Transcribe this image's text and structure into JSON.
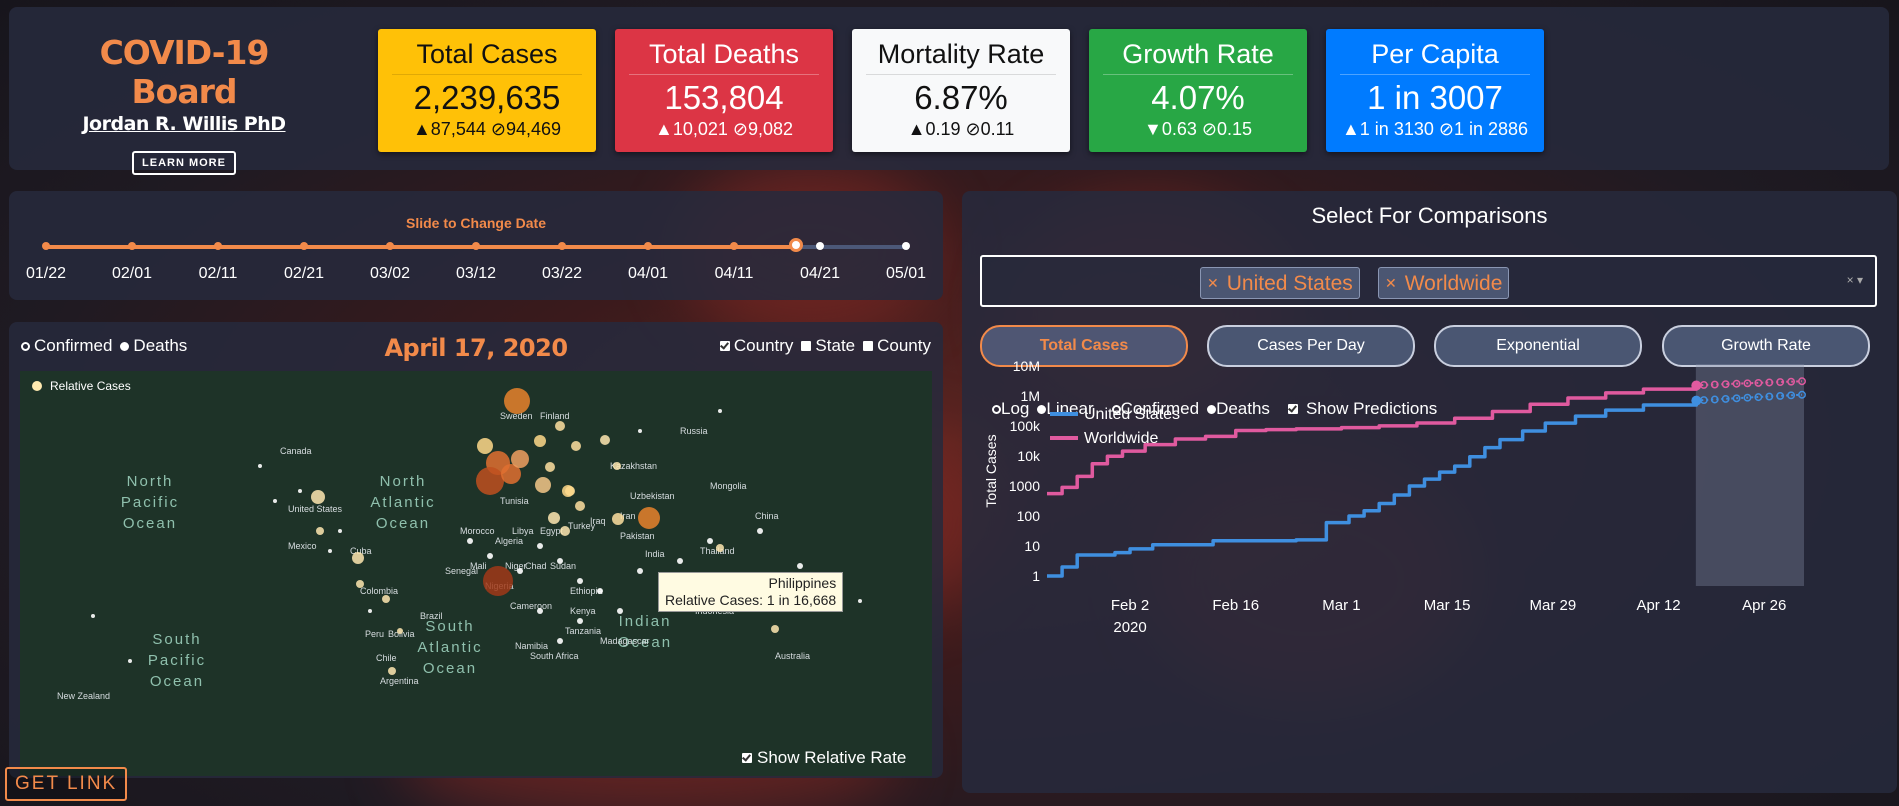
{
  "brand": {
    "title": "COVID-19 Board",
    "author": "Jordan R. Willis PhD",
    "learn_more": "LEARN MORE"
  },
  "stats": [
    {
      "title": "Total Cases",
      "value": "2,239,635",
      "delta": "▲87,544 ⊘94,469",
      "bg": "#ffc107",
      "fg": "#111111"
    },
    {
      "title": "Total Deaths",
      "value": "153,804",
      "delta": "▲10,021 ⊘9,082",
      "bg": "#dc3545",
      "fg": "#ffffff"
    },
    {
      "title": "Mortality Rate",
      "value": "6.87%",
      "delta": "▲0.19 ⊘0.11",
      "bg": "#f8f9fa",
      "fg": "#111111"
    },
    {
      "title": "Growth Rate",
      "value": "4.07%",
      "delta": "▼0.63 ⊘0.15",
      "bg": "#28a745",
      "fg": "#ffffff"
    },
    {
      "title": "Per Capita",
      "value": "1 in 3007",
      "delta": "▲1 in 3130 ⊘1 in 2886",
      "bg": "#007bff",
      "fg": "#ffffff"
    }
  ],
  "slider": {
    "label": "Slide to Change Date",
    "ticks": [
      "01/22",
      "02/01",
      "02/11",
      "02/21",
      "03/02",
      "03/12",
      "03/22",
      "04/01",
      "04/11",
      "04/21",
      "05/01"
    ],
    "value_fraction": 0.872
  },
  "map": {
    "metric_options": [
      {
        "label": "Confirmed",
        "on": false
      },
      {
        "label": "Deaths",
        "on": true
      }
    ],
    "date": "April 17, 2020",
    "level_options": [
      {
        "label": "Country",
        "on": true
      },
      {
        "label": "State",
        "on": false
      },
      {
        "label": "County",
        "on": false
      }
    ],
    "legend": "Relative Cases",
    "oceans": [
      "North Pacific Ocean",
      "North Atlantic Ocean",
      "South Atlantic Ocean",
      "South Pacific Ocean",
      "Indian Ocean"
    ],
    "places": [
      "Canada",
      "United States",
      "Mexico",
      "Cuba",
      "Colombia",
      "Peru",
      "Bolivia",
      "Brazil",
      "Chile",
      "Argentina",
      "Sweden",
      "Finland",
      "Russia",
      "Kazakhstan",
      "Mongolia",
      "China",
      "Uzbekistan",
      "Turkey",
      "Iran",
      "Iraq",
      "Pakistan",
      "India",
      "Libya",
      "Egypt",
      "Algeria",
      "Morocco",
      "Tunisia",
      "Mali",
      "Niger",
      "Chad",
      "Sudan",
      "Nigeria",
      "Senegal",
      "Ethiopia",
      "Kenya",
      "Tanzania",
      "Cameroon",
      "Namibia",
      "South Africa",
      "Madagascar",
      "Indonesia",
      "Philippines",
      "Australia",
      "New Zealand",
      "Thailand"
    ],
    "tooltip": {
      "country": "Philippines",
      "text": "Relative Cases: 1 in 16,668"
    },
    "show_relative": "Show Relative Rate"
  },
  "get_link": "GET LINK",
  "comparison": {
    "title": "Select For Comparisons",
    "selected": [
      "United States",
      "Worldwide"
    ],
    "clear_icon": "× ▾",
    "tabs": [
      "Total Cases",
      "Cases Per Day",
      "Exponential",
      "Growth Rate"
    ],
    "active_tab": "Total Cases",
    "scale_options": [
      {
        "label": "Log",
        "on": false
      },
      {
        "label": "Linear",
        "on": true
      }
    ],
    "metric_options": [
      {
        "label": "Confirmed",
        "on": false
      },
      {
        "label": "Deaths",
        "on": true
      }
    ],
    "predictions": {
      "label": "Show Predictions",
      "on": true
    }
  },
  "chart_data": {
    "type": "line",
    "ylabel": "Total Cases",
    "yscale": "log",
    "y_ticks": [
      "1",
      "10",
      "100",
      "1000",
      "10k",
      "100k",
      "1M",
      "10M"
    ],
    "x_ticks": [
      "Feb 2",
      "Feb 16",
      "Mar 1",
      "Mar 15",
      "Mar 29",
      "Apr 12",
      "Apr 26"
    ],
    "x_sub": "2020",
    "x_range": [
      "2020-01-22",
      "2020-05-01"
    ],
    "prediction_start": "2020-04-18",
    "series": [
      {
        "name": "United States",
        "color": "#3f8fe0",
        "x": [
          "2020-01-22",
          "2020-01-24",
          "2020-01-26",
          "2020-01-31",
          "2020-02-02",
          "2020-02-05",
          "2020-02-13",
          "2020-02-24",
          "2020-02-28",
          "2020-03-02",
          "2020-03-04",
          "2020-03-06",
          "2020-03-08",
          "2020-03-10",
          "2020-03-12",
          "2020-03-14",
          "2020-03-16",
          "2020-03-18",
          "2020-03-20",
          "2020-03-22",
          "2020-03-25",
          "2020-03-28",
          "2020-04-01",
          "2020-04-05",
          "2020-04-10",
          "2020-04-17"
        ],
        "y": [
          1,
          2,
          5,
          6,
          8,
          11,
          15,
          16,
          60,
          100,
          150,
          260,
          500,
          1000,
          1700,
          2900,
          4600,
          9400,
          19000,
          35000,
          68000,
          125000,
          214000,
          337000,
          500000,
          700000
        ],
        "pred_x": [
          "2020-04-18",
          "2020-04-21",
          "2020-04-24",
          "2020-04-27",
          "2020-05-01"
        ],
        "pred_y": [
          730000,
          810000,
          890000,
          980000,
          1100000
        ]
      },
      {
        "name": "Worldwide",
        "color": "#e05a9f",
        "x": [
          "2020-01-22",
          "2020-01-24",
          "2020-01-26",
          "2020-01-28",
          "2020-01-30",
          "2020-02-01",
          "2020-02-04",
          "2020-02-08",
          "2020-02-12",
          "2020-02-16",
          "2020-02-20",
          "2020-02-24",
          "2020-03-01",
          "2020-03-06",
          "2020-03-11",
          "2020-03-16",
          "2020-03-21",
          "2020-03-26",
          "2020-03-31",
          "2020-04-05",
          "2020-04-10",
          "2020-04-17"
        ],
        "y": [
          555,
          900,
          2100,
          5500,
          9800,
          14500,
          24000,
          37000,
          45000,
          71000,
          76000,
          80000,
          88000,
          101000,
          126000,
          182000,
          305000,
          530000,
          860000,
          1270000,
          1690000,
          2240000
        ],
        "pred_x": [
          "2020-04-18",
          "2020-04-21",
          "2020-04-24",
          "2020-04-27",
          "2020-05-01"
        ],
        "pred_y": [
          2330000,
          2500000,
          2680000,
          2860000,
          3100000
        ]
      }
    ]
  }
}
